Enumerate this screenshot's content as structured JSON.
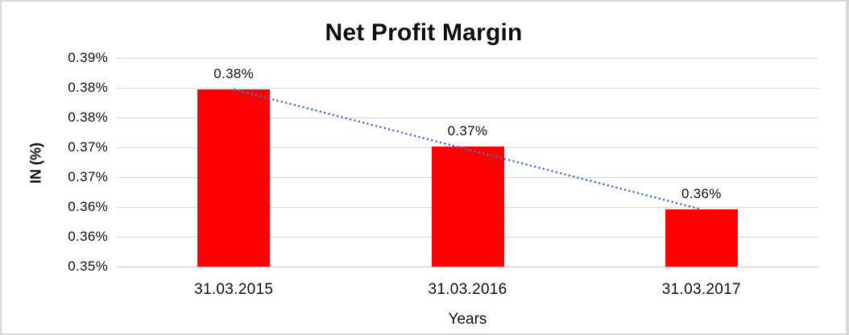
{
  "chart_data": {
    "type": "bar",
    "title": "Net Profit Margin",
    "xlabel": "Years",
    "ylabel": "IN (%)",
    "categories": [
      "31.03.2015",
      "31.03.2016",
      "31.03.2017"
    ],
    "values": [
      0.384,
      0.373,
      0.361
    ],
    "value_unit": "%",
    "data_labels": [
      "0.38%",
      "0.37%",
      "0.36%"
    ],
    "ylim": [
      0.35,
      0.39
    ],
    "ytick_labels": [
      "0.39%",
      "0.38%",
      "0.38%",
      "0.37%",
      "0.37%",
      "0.36%",
      "0.36%",
      "0.35%"
    ],
    "grid": true,
    "legend": "none",
    "bar_color": "#FF0000",
    "gridline_color": "#D9D9D9",
    "trendline": {
      "type": "linear",
      "style": "dotted",
      "color": "#4472C4"
    }
  }
}
